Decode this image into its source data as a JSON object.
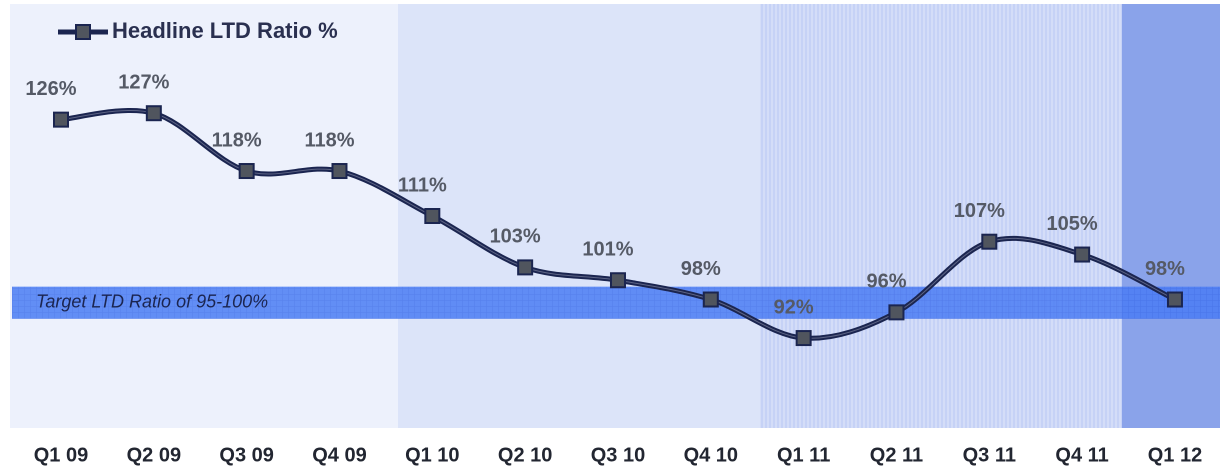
{
  "chart_data": {
    "type": "line",
    "categories": [
      "Q1 09",
      "Q2 09",
      "Q3 09",
      "Q4 09",
      "Q1 10",
      "Q2 10",
      "Q3 10",
      "Q4 10",
      "Q1 11",
      "Q2 11",
      "Q3 11",
      "Q4 11",
      "Q1 12"
    ],
    "series": [
      {
        "name": "Headline LTD Ratio %",
        "color": "#1b2550",
        "values": [
          126,
          127,
          118,
          118,
          111,
          103,
          101,
          98,
          92,
          96,
          107,
          105,
          98
        ],
        "value_labels": [
          "126%",
          "127%",
          "118%",
          "118%",
          "111%",
          "103%",
          "101%",
          "98%",
          "92%",
          "96%",
          "107%",
          "105%",
          "98%"
        ]
      }
    ],
    "ylim": [
      78,
      144
    ],
    "target_band": {
      "label": "Target LTD Ratio of 95-100%",
      "range": [
        95,
        100
      ],
      "color": "#3a6cf0"
    }
  }
}
